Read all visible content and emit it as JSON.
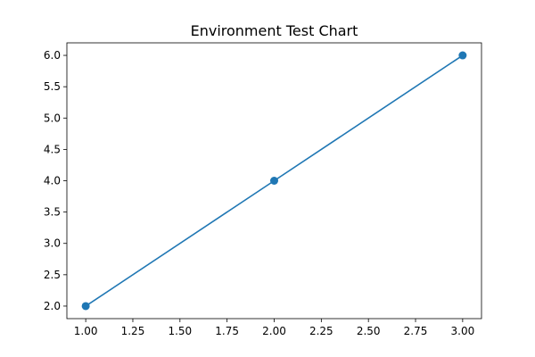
{
  "chart_data": {
    "type": "line",
    "title": "Environment Test Chart",
    "xlabel": "",
    "ylabel": "",
    "x": [
      1.0,
      2.0,
      3.0
    ],
    "series": [
      {
        "values": [
          2.0,
          4.0,
          6.0
        ],
        "color": "#1f77b4",
        "marker": "circle"
      }
    ],
    "xlim": [
      0.9,
      3.1
    ],
    "ylim": [
      1.8,
      6.2
    ],
    "xticks": [
      "1.00",
      "1.25",
      "1.50",
      "1.75",
      "2.00",
      "2.25",
      "2.50",
      "2.75",
      "3.00"
    ],
    "yticks": [
      "2.0",
      "2.5",
      "3.0",
      "3.5",
      "4.0",
      "4.5",
      "5.0",
      "5.5",
      "6.0"
    ],
    "grid": false,
    "legend": "none"
  }
}
